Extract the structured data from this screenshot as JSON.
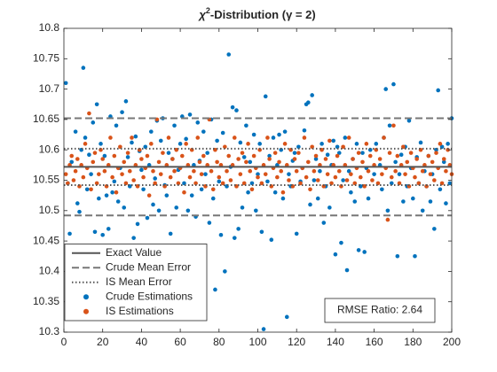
{
  "chart_data": {
    "type": "scatter",
    "title": {
      "symbol": "χ",
      "superscript": "2",
      "text": "-Distribution (γ = 2)"
    },
    "xlim": [
      0,
      200
    ],
    "xticks": [
      0,
      20,
      40,
      60,
      80,
      100,
      120,
      140,
      160,
      180,
      200
    ],
    "ylim": [
      10.3,
      10.8
    ],
    "yticks": [
      10.3,
      10.35,
      10.4,
      10.45,
      10.5,
      10.55,
      10.6,
      10.65,
      10.7,
      10.75,
      10.8
    ],
    "x": [
      1,
      2,
      3,
      4,
      5,
      6,
      7,
      8,
      9,
      10,
      11,
      12,
      13,
      14,
      15,
      16,
      17,
      18,
      19,
      20,
      21,
      22,
      23,
      24,
      25,
      26,
      27,
      28,
      29,
      30,
      31,
      32,
      33,
      34,
      35,
      36,
      37,
      38,
      39,
      40,
      41,
      42,
      43,
      44,
      45,
      46,
      47,
      48,
      49,
      50,
      51,
      52,
      53,
      54,
      55,
      56,
      57,
      58,
      59,
      60,
      61,
      62,
      63,
      64,
      65,
      66,
      67,
      68,
      69,
      70,
      71,
      72,
      73,
      74,
      75,
      76,
      77,
      78,
      79,
      80,
      81,
      82,
      83,
      84,
      85,
      86,
      87,
      88,
      89,
      90,
      91,
      92,
      93,
      94,
      95,
      96,
      97,
      98,
      99,
      100,
      101,
      102,
      103,
      104,
      105,
      106,
      107,
      108,
      109,
      110,
      111,
      112,
      113,
      114,
      115,
      116,
      117,
      118,
      119,
      120,
      121,
      122,
      123,
      124,
      125,
      126,
      127,
      128,
      129,
      130,
      131,
      132,
      133,
      134,
      135,
      136,
      137,
      138,
      139,
      140,
      141,
      142,
      143,
      144,
      145,
      146,
      147,
      148,
      149,
      150,
      151,
      152,
      153,
      154,
      155,
      156,
      157,
      158,
      159,
      160,
      161,
      162,
      163,
      164,
      165,
      166,
      167,
      168,
      169,
      170,
      171,
      172,
      173,
      174,
      175,
      176,
      177,
      178,
      179,
      180,
      181,
      182,
      183,
      184,
      185,
      186,
      187,
      188,
      189,
      190,
      191,
      192,
      193,
      194,
      195,
      196,
      197,
      198,
      199,
      200
    ],
    "reference_lines": [
      {
        "name": "Exact Value",
        "values": [
          10.572
        ],
        "style": "solid",
        "color": "#555555"
      },
      {
        "name": "Crude Mean Error",
        "values": [
          10.492,
          10.652
        ],
        "style": "dashed",
        "color": "#777777"
      },
      {
        "name": "IS Mean Error",
        "values": [
          10.542,
          10.602
        ],
        "style": "dotted",
        "color": "#555555"
      }
    ],
    "series": [
      {
        "name": "Crude Estimations",
        "color": "#0072BD",
        "values": [
          10.71,
          10.545,
          10.462,
          10.58,
          10.44,
          10.63,
          10.512,
          10.498,
          10.6,
          10.735,
          10.62,
          10.535,
          10.592,
          10.56,
          10.645,
          10.465,
          10.675,
          10.52,
          10.61,
          10.46,
          10.59,
          10.525,
          10.47,
          10.655,
          10.53,
          10.548,
          10.64,
          10.515,
          10.57,
          10.662,
          10.505,
          10.68,
          10.588,
          10.54,
          10.612,
          10.455,
          10.622,
          10.478,
          10.598,
          10.567,
          10.535,
          10.605,
          10.488,
          10.575,
          10.63,
          10.51,
          10.553,
          10.648,
          10.5,
          10.615,
          10.652,
          10.542,
          10.525,
          10.595,
          10.462,
          10.585,
          10.64,
          10.505,
          10.567,
          10.61,
          10.655,
          10.545,
          10.618,
          10.5,
          10.658,
          10.525,
          10.575,
          10.49,
          10.645,
          10.582,
          10.535,
          10.63,
          10.56,
          10.595,
          10.48,
          10.65,
          10.52,
          10.37,
          10.615,
          10.548,
          10.46,
          10.628,
          10.4,
          10.54,
          10.757,
          10.572,
          10.67,
          10.455,
          10.665,
          10.47,
          10.612,
          10.505,
          10.588,
          10.64,
          10.53,
          10.58,
          10.545,
          10.625,
          10.5,
          10.56,
          10.61,
          10.465,
          10.305,
          10.688,
          10.548,
          10.59,
          10.452,
          10.62,
          10.53,
          10.575,
          10.625,
          10.6,
          10.52,
          10.63,
          10.325,
          10.56,
          10.54,
          10.582,
          10.595,
          10.462,
          10.605,
          10.548,
          10.57,
          10.632,
          10.675,
          10.678,
          10.51,
          10.69,
          10.55,
          10.585,
          10.52,
          10.565,
          10.61,
          10.48,
          10.54,
          10.592,
          10.505,
          10.575,
          10.615,
          10.428,
          10.605,
          10.595,
          10.447,
          10.55,
          10.62,
          10.402,
          10.565,
          10.53,
          10.585,
          10.515,
          10.61,
          10.435,
          10.54,
          10.595,
          10.432,
          10.57,
          10.52,
          10.6,
          10.348,
          10.56,
          10.61,
          10.32,
          10.575,
          10.535,
          10.62,
          10.7,
          10.5,
          10.64,
          10.545,
          10.708,
          10.58,
          10.425,
          10.56,
          10.592,
          10.515,
          10.605,
          10.54,
          10.648,
          10.57,
          10.52,
          10.425,
          10.588,
          10.545,
          10.612,
          10.5,
          10.565,
          10.54,
          10.59,
          10.515,
          10.56,
          10.47,
          10.6,
          10.698,
          10.535,
          10.605,
          10.58,
          10.512,
          10.61,
          10.545,
          10.652
        ]
      },
      {
        "name": "IS Estimations",
        "color": "#D95319",
        "values": [
          10.56,
          10.545,
          10.575,
          10.59,
          10.55,
          10.565,
          10.585,
          10.54,
          10.575,
          10.555,
          10.61,
          10.57,
          10.66,
          10.535,
          10.58,
          10.595,
          10.545,
          10.56,
          10.6,
          10.585,
          10.565,
          10.54,
          10.575,
          10.62,
          10.555,
          10.59,
          10.53,
          10.57,
          10.605,
          10.56,
          10.58,
          10.545,
          10.595,
          10.565,
          10.62,
          10.55,
          10.575,
          10.54,
          10.6,
          10.585,
          10.555,
          10.57,
          10.59,
          10.525,
          10.61,
          10.565,
          10.545,
          10.65,
          10.58,
          10.56,
          10.595,
          10.54,
          10.575,
          10.62,
          10.555,
          10.585,
          10.565,
          10.6,
          10.545,
          10.57,
          10.59,
          10.53,
          10.61,
          10.575,
          10.555,
          10.6,
          10.565,
          10.545,
          10.62,
          10.58,
          10.56,
          10.59,
          10.54,
          10.575,
          10.65,
          10.565,
          10.535,
          10.6,
          10.58,
          10.555,
          10.575,
          10.545,
          10.605,
          10.565,
          10.59,
          10.55,
          10.575,
          10.62,
          10.54,
          10.585,
          10.56,
          10.595,
          10.545,
          10.58,
          10.61,
          10.565,
          10.535,
          10.59,
          10.57,
          10.555,
          10.6,
          10.545,
          10.575,
          10.56,
          10.62,
          10.585,
          10.54,
          10.57,
          10.595,
          10.555,
          10.58,
          10.565,
          10.53,
          10.61,
          10.575,
          10.55,
          10.6,
          10.54,
          10.585,
          10.565,
          10.595,
          10.545,
          10.57,
          10.62,
          10.555,
          10.58,
          10.535,
          10.605,
          10.565,
          10.59,
          10.55,
          10.575,
          10.6,
          10.54,
          10.585,
          10.56,
          10.615,
          10.545,
          10.575,
          10.555,
          10.59,
          10.565,
          10.54,
          10.605,
          10.575,
          10.55,
          10.62,
          10.56,
          10.585,
          10.545,
          10.57,
          10.595,
          10.555,
          10.58,
          10.54,
          10.61,
          10.565,
          10.59,
          10.55,
          10.575,
          10.6,
          10.545,
          10.585,
          10.56,
          10.62,
          10.57,
          10.485,
          10.595,
          10.555,
          10.64,
          10.565,
          10.59,
          10.545,
          10.575,
          10.605,
          10.56,
          10.58,
          10.54,
          10.595,
          10.57,
          10.555,
          10.585,
          10.545,
          10.6,
          10.565,
          10.575,
          10.54,
          10.59,
          10.56,
          10.58,
          10.55,
          10.595,
          10.57,
          10.61,
          10.545,
          10.585,
          10.565,
          10.6,
          10.575,
          10.56
        ]
      }
    ],
    "legend": "southwest",
    "annotation": "RMSE Ratio: 2.64"
  }
}
